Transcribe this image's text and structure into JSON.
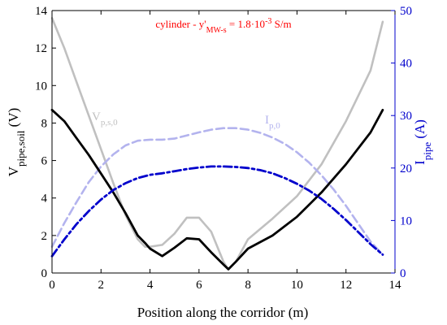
{
  "chart_data": {
    "type": "line",
    "title": "cylinder - y'MW-s = 1.8·10-3 S/m",
    "title_parts": {
      "main": "cylinder - y'",
      "sub": "MW-s",
      "mid": " = 1.8·10",
      "sup": "-3",
      "tail": " S/m"
    },
    "xlabel": "Position along the corridor (m)",
    "ylabel_left": {
      "main": "V",
      "sub": "pipe,soil",
      "unit": " (V)"
    },
    "ylabel_right": {
      "main": "I",
      "sub": "pipe",
      "unit": " (A)"
    },
    "xlim": [
      0,
      14
    ],
    "ylim_left": [
      0,
      14
    ],
    "ylim_right": [
      0,
      50
    ],
    "x_ticks": [
      "0",
      "2",
      "4",
      "6",
      "8",
      "10",
      "12",
      "14"
    ],
    "y_left_ticks": [
      "0",
      "2",
      "4",
      "6",
      "8",
      "10",
      "12",
      "14"
    ],
    "y_right_ticks": [
      "0",
      "10",
      "20",
      "30",
      "40",
      "50"
    ],
    "colors": {
      "axis_right": "#0000cc",
      "title": "#ff0000",
      "v_base": "#c0c0c0",
      "i_base": "#b3b3ee",
      "v": "#000000",
      "i": "#0000cc"
    },
    "series": [
      {
        "name": "V_p,s,0",
        "label": {
          "main": "V",
          "sub": "p,s,0"
        },
        "axis": "left",
        "style": "solid",
        "color": "#c0c0c0",
        "x": [
          0,
          0.5,
          1,
          1.5,
          2,
          2.5,
          3,
          3.5,
          3.8,
          4,
          4.5,
          5,
          5.5,
          6,
          6.5,
          7,
          7.2,
          7.5,
          8,
          9,
          10,
          11,
          12,
          13,
          13.5
        ],
        "y": [
          13.6,
          12.0,
          10.2,
          8.4,
          6.6,
          4.8,
          3.1,
          1.8,
          1.4,
          1.4,
          1.5,
          2.1,
          2.95,
          2.95,
          2.2,
          0.6,
          0.2,
          0.6,
          1.8,
          2.9,
          4.1,
          5.8,
          8.1,
          10.8,
          13.4
        ]
      },
      {
        "name": "I_p,0",
        "label": {
          "main": "I",
          "sub": "p,0"
        },
        "axis": "right",
        "style": "dashed",
        "color": "#b3b3ee",
        "x": [
          0,
          0.5,
          1,
          1.5,
          2,
          2.5,
          3,
          3.5,
          4,
          4.5,
          5,
          5.5,
          6,
          6.5,
          7,
          7.5,
          8,
          8.5,
          9,
          9.5,
          10,
          10.5,
          11,
          11.5,
          12,
          12.5,
          13,
          13.5
        ],
        "y": [
          5,
          9.5,
          13.5,
          17.3,
          20.3,
          22.6,
          24.3,
          25.2,
          25.4,
          25.4,
          25.6,
          26.2,
          26.8,
          27.3,
          27.6,
          27.6,
          27.3,
          26.7,
          25.8,
          24.6,
          23.0,
          21.0,
          18.6,
          15.9,
          12.8,
          9.4,
          6.0,
          3.5
        ]
      },
      {
        "name": "V_pipe,soil",
        "axis": "left",
        "style": "solid",
        "color": "#000000",
        "x": [
          0,
          0.5,
          1,
          1.5,
          2,
          2.5,
          3,
          3.5,
          3.8,
          4,
          4.5,
          5,
          5.5,
          6,
          6.5,
          7,
          7.2,
          7.5,
          8,
          9,
          10,
          11,
          12,
          13,
          13.5
        ],
        "y": [
          8.7,
          8.1,
          7.2,
          6.3,
          5.3,
          4.3,
          3.2,
          2.0,
          1.6,
          1.3,
          0.9,
          1.35,
          1.85,
          1.8,
          1.1,
          0.45,
          0.2,
          0.6,
          1.3,
          2.0,
          3.0,
          4.3,
          5.8,
          7.5,
          8.7
        ]
      },
      {
        "name": "I_pipe",
        "axis": "right",
        "style": "dashdot",
        "color": "#0000cc",
        "x": [
          0,
          0.5,
          1,
          1.5,
          2,
          2.5,
          3,
          3.5,
          4,
          4.5,
          5,
          5.5,
          6,
          6.5,
          7,
          7.5,
          8,
          8.5,
          9,
          9.5,
          10,
          10.5,
          11,
          11.5,
          12,
          12.5,
          13,
          13.5
        ],
        "y": [
          3.2,
          6.4,
          9.3,
          11.8,
          14.0,
          15.8,
          17.1,
          18.1,
          18.7,
          19.0,
          19.4,
          19.8,
          20.1,
          20.3,
          20.3,
          20.2,
          20.0,
          19.6,
          19.0,
          18.1,
          17.0,
          15.7,
          14.1,
          12.2,
          10.1,
          7.8,
          5.5,
          3.5
        ]
      }
    ]
  }
}
